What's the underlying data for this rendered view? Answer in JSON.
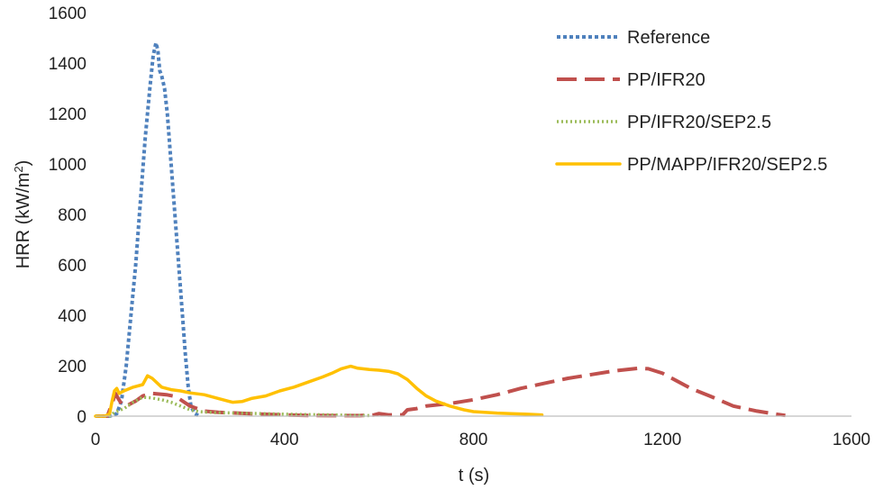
{
  "chart_data": {
    "type": "line",
    "xlabel": "t (s)",
    "ylabel": {
      "main": "HRR (kW/m",
      "sup": "2",
      "close": ")"
    },
    "xlim": [
      0,
      1600
    ],
    "ylim": [
      0,
      1600
    ],
    "x_ticks": [
      0,
      400,
      800,
      1200,
      1600
    ],
    "y_ticks": [
      0,
      200,
      400,
      600,
      800,
      1000,
      1200,
      1400,
      1600
    ],
    "grid": false,
    "legend_position": "top-right",
    "series": [
      {
        "name": "Reference",
        "color": "#4F81BD",
        "style": "dotted-square",
        "points": [
          [
            0,
            0
          ],
          [
            30,
            0
          ],
          [
            45,
            10
          ],
          [
            55,
            60
          ],
          [
            65,
            200
          ],
          [
            75,
            400
          ],
          [
            85,
            600
          ],
          [
            95,
            850
          ],
          [
            105,
            1100
          ],
          [
            115,
            1300
          ],
          [
            122,
            1430
          ],
          [
            128,
            1480
          ],
          [
            132,
            1450
          ],
          [
            136,
            1370
          ],
          [
            140,
            1350
          ],
          [
            146,
            1300
          ],
          [
            152,
            1200
          ],
          [
            160,
            1000
          ],
          [
            168,
            800
          ],
          [
            176,
            600
          ],
          [
            184,
            400
          ],
          [
            190,
            250
          ],
          [
            196,
            120
          ],
          [
            202,
            40
          ],
          [
            210,
            10
          ],
          [
            220,
            0
          ]
        ]
      },
      {
        "name": "PP/IFR20",
        "color": "#C0504D",
        "style": "long-dash",
        "points": [
          [
            0,
            0
          ],
          [
            25,
            0
          ],
          [
            35,
            50
          ],
          [
            42,
            90
          ],
          [
            48,
            70
          ],
          [
            58,
            40
          ],
          [
            70,
            45
          ],
          [
            85,
            60
          ],
          [
            100,
            80
          ],
          [
            120,
            90
          ],
          [
            150,
            85
          ],
          [
            170,
            78
          ],
          [
            200,
            40
          ],
          [
            230,
            20
          ],
          [
            260,
            15
          ],
          [
            300,
            12
          ],
          [
            350,
            8
          ],
          [
            400,
            5
          ],
          [
            450,
            3
          ],
          [
            500,
            2
          ],
          [
            560,
            2
          ],
          [
            590,
            5
          ],
          [
            600,
            10
          ],
          [
            620,
            5
          ],
          [
            650,
            5
          ],
          [
            660,
            25
          ],
          [
            680,
            30
          ],
          [
            700,
            40
          ],
          [
            750,
            50
          ],
          [
            800,
            65
          ],
          [
            850,
            85
          ],
          [
            900,
            110
          ],
          [
            950,
            130
          ],
          [
            1000,
            150
          ],
          [
            1050,
            165
          ],
          [
            1100,
            180
          ],
          [
            1150,
            190
          ],
          [
            1170,
            188
          ],
          [
            1200,
            170
          ],
          [
            1230,
            140
          ],
          [
            1260,
            110
          ],
          [
            1300,
            80
          ],
          [
            1350,
            40
          ],
          [
            1400,
            20
          ],
          [
            1440,
            8
          ],
          [
            1460,
            3
          ]
        ]
      },
      {
        "name": "PP/IFR20/SEP2.5",
        "color": "#9BBB59",
        "style": "dotted",
        "points": [
          [
            0,
            0
          ],
          [
            30,
            0
          ],
          [
            40,
            15
          ],
          [
            60,
            30
          ],
          [
            80,
            55
          ],
          [
            100,
            75
          ],
          [
            120,
            72
          ],
          [
            140,
            65
          ],
          [
            160,
            55
          ],
          [
            180,
            40
          ],
          [
            200,
            25
          ],
          [
            220,
            18
          ],
          [
            250,
            14
          ],
          [
            300,
            12
          ],
          [
            350,
            10
          ],
          [
            400,
            8
          ],
          [
            450,
            6
          ],
          [
            500,
            5
          ],
          [
            550,
            3
          ],
          [
            580,
            2
          ]
        ]
      },
      {
        "name": "PP/MAPP/IFR20/SEP2.5",
        "color": "#FFC000",
        "style": "solid",
        "points": [
          [
            0,
            0
          ],
          [
            20,
            0
          ],
          [
            30,
            10
          ],
          [
            35,
            60
          ],
          [
            40,
            100
          ],
          [
            45,
            110
          ],
          [
            50,
            90
          ],
          [
            60,
            100
          ],
          [
            80,
            115
          ],
          [
            100,
            125
          ],
          [
            110,
            160
          ],
          [
            120,
            150
          ],
          [
            140,
            115
          ],
          [
            160,
            105
          ],
          [
            180,
            100
          ],
          [
            200,
            92
          ],
          [
            230,
            85
          ],
          [
            260,
            70
          ],
          [
            290,
            55
          ],
          [
            310,
            58
          ],
          [
            330,
            70
          ],
          [
            360,
            80
          ],
          [
            390,
            100
          ],
          [
            420,
            115
          ],
          [
            450,
            135
          ],
          [
            480,
            155
          ],
          [
            500,
            170
          ],
          [
            520,
            188
          ],
          [
            540,
            198
          ],
          [
            555,
            190
          ],
          [
            580,
            185
          ],
          [
            600,
            182
          ],
          [
            620,
            178
          ],
          [
            640,
            168
          ],
          [
            660,
            145
          ],
          [
            680,
            110
          ],
          [
            700,
            80
          ],
          [
            720,
            60
          ],
          [
            750,
            40
          ],
          [
            780,
            25
          ],
          [
            800,
            18
          ],
          [
            850,
            12
          ],
          [
            880,
            10
          ],
          [
            910,
            8
          ],
          [
            930,
            6
          ],
          [
            945,
            5
          ]
        ]
      }
    ]
  }
}
